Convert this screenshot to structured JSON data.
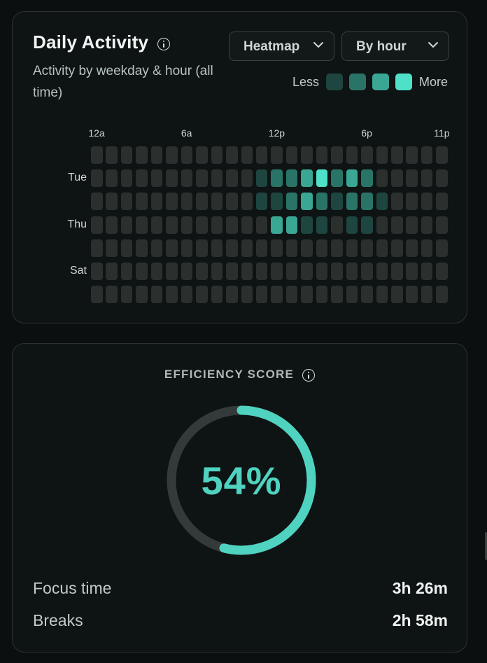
{
  "activity": {
    "title": "Daily Activity",
    "subtitle": "Activity by weekday & hour (all time)",
    "view_select": "Heatmap",
    "group_select": "By hour",
    "legend": {
      "less_label": "Less",
      "more_label": "More",
      "colors": [
        "#1e4540",
        "#2a7467",
        "#3aa694",
        "#4fe0c8"
      ]
    },
    "x_labels": [
      {
        "text": "12a",
        "hour": 0
      },
      {
        "text": "6a",
        "hour": 6
      },
      {
        "text": "12p",
        "hour": 12
      },
      {
        "text": "6p",
        "hour": 18
      },
      {
        "text": "11p",
        "hour": 23
      }
    ],
    "y_labels": [
      {
        "text": "Tue",
        "row": 1
      },
      {
        "text": "Thu",
        "row": 3
      },
      {
        "text": "Sat",
        "row": 5
      }
    ],
    "empty_color": "#2b302f",
    "intensity": [
      [
        0,
        0,
        0,
        0,
        0,
        0,
        0,
        0,
        0,
        0,
        0,
        0,
        0,
        0,
        0,
        0,
        0,
        0,
        0,
        0,
        0,
        0,
        0,
        0
      ],
      [
        0,
        0,
        0,
        0,
        0,
        0,
        0,
        0,
        0,
        0,
        0,
        1,
        2,
        2,
        3,
        4,
        2,
        3,
        2,
        0,
        0,
        0,
        0,
        0
      ],
      [
        0,
        0,
        0,
        0,
        0,
        0,
        0,
        0,
        0,
        0,
        0,
        1,
        1,
        2,
        3,
        2,
        1,
        2,
        2,
        1,
        0,
        0,
        0,
        0
      ],
      [
        0,
        0,
        0,
        0,
        0,
        0,
        0,
        0,
        0,
        0,
        0,
        0,
        3,
        3,
        1,
        1,
        0,
        1,
        1,
        0,
        0,
        0,
        0,
        0
      ],
      [
        0,
        0,
        0,
        0,
        0,
        0,
        0,
        0,
        0,
        0,
        0,
        0,
        0,
        0,
        0,
        0,
        0,
        0,
        0,
        0,
        0,
        0,
        0,
        0
      ],
      [
        0,
        0,
        0,
        0,
        0,
        0,
        0,
        0,
        0,
        0,
        0,
        0,
        0,
        0,
        0,
        0,
        0,
        0,
        0,
        0,
        0,
        0,
        0,
        0
      ],
      [
        0,
        0,
        0,
        0,
        0,
        0,
        0,
        0,
        0,
        0,
        0,
        0,
        0,
        0,
        0,
        0,
        0,
        0,
        0,
        0,
        0,
        0,
        0,
        0
      ]
    ]
  },
  "efficiency": {
    "label": "EFFICIENCY SCORE",
    "score_text": "54%",
    "score": 0.54,
    "ring_color": "#4fd3c0",
    "track_color": "#343a39",
    "stats": [
      {
        "label": "Focus time",
        "value": "3h 26m"
      },
      {
        "label": "Breaks",
        "value": "2h 58m"
      }
    ]
  }
}
